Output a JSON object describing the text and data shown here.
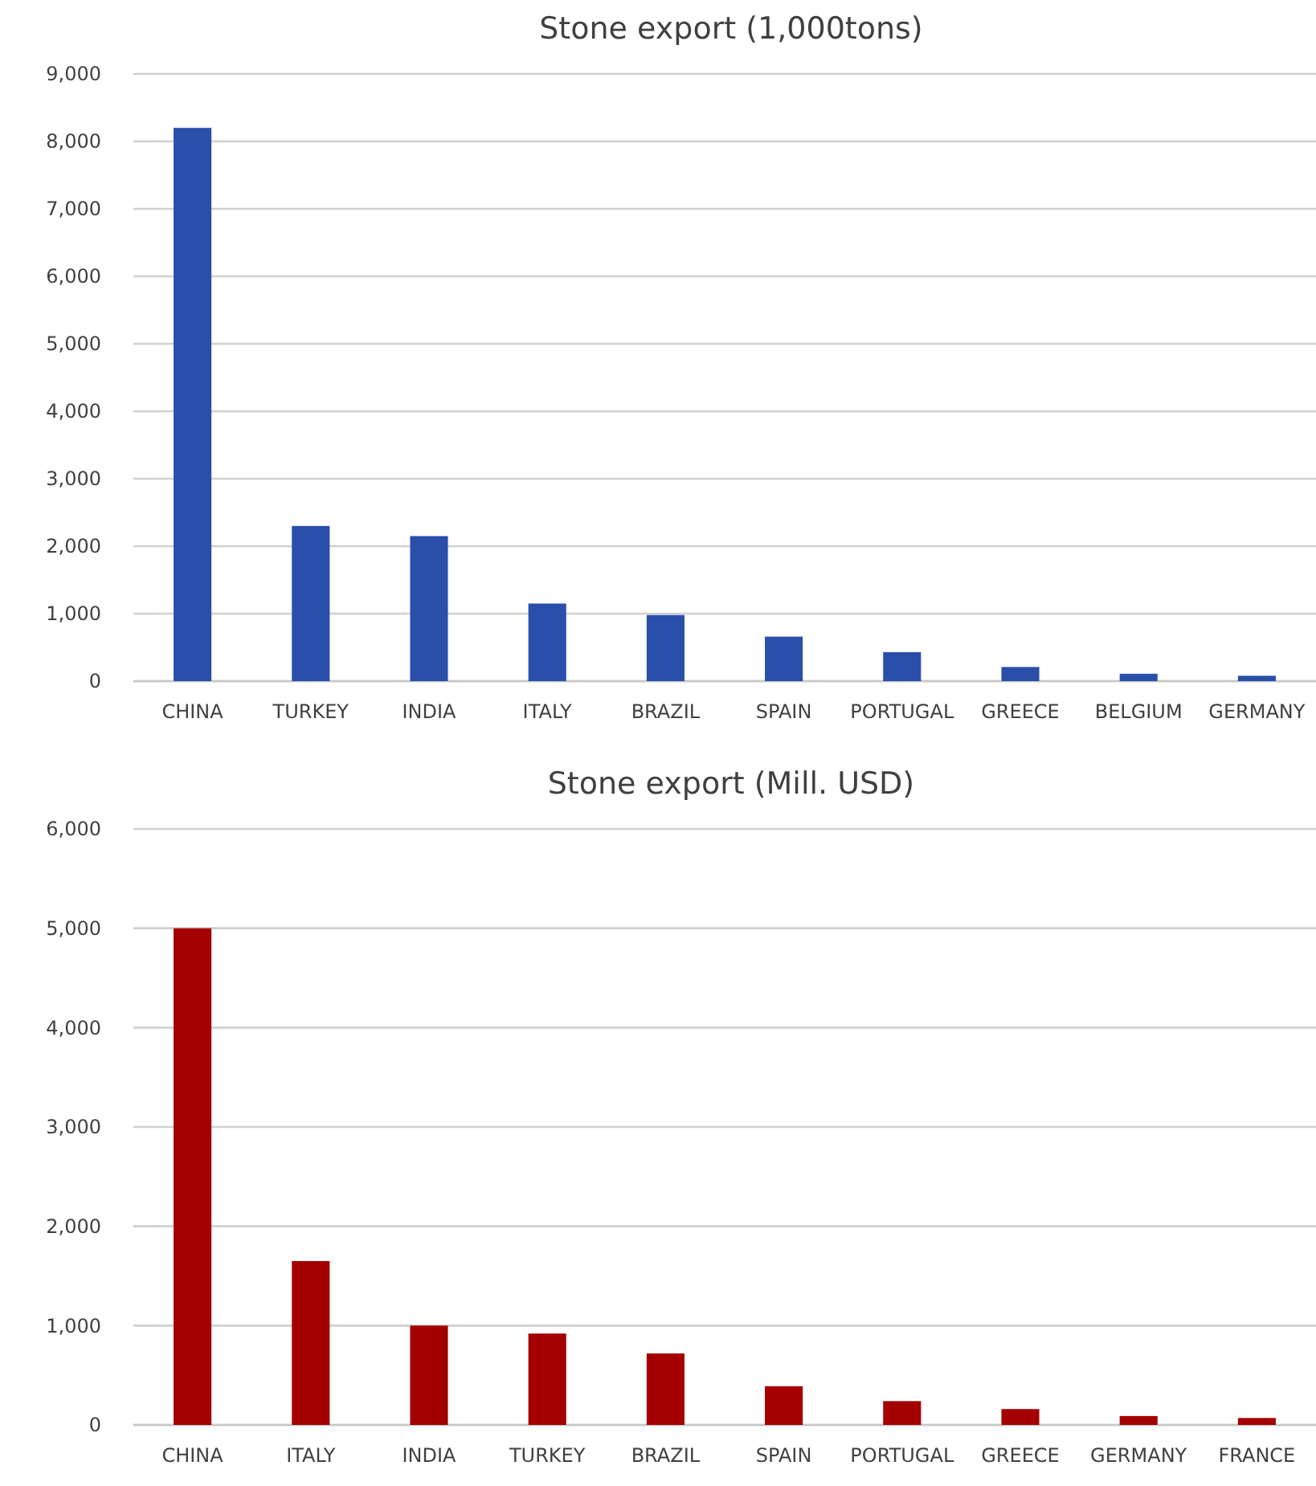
{
  "chart_data": [
    {
      "type": "bar",
      "title": "Stone export (1,000tons)",
      "categories": [
        "CHINA",
        "TURKEY",
        "INDIA",
        "ITALY",
        "BRAZIL",
        "SPAIN",
        "PORTUGAL",
        "GREECE",
        "BELGIUM",
        "GERMANY"
      ],
      "values": [
        8200,
        2300,
        2150,
        1150,
        980,
        660,
        430,
        210,
        110,
        80
      ],
      "color": "#2a4faa",
      "ylim": [
        0,
        9000
      ],
      "yticks": [
        {
          "value": 0,
          "label": "0"
        },
        {
          "value": 1000,
          "label": "1,000"
        },
        {
          "value": 2000,
          "label": "2,000"
        },
        {
          "value": 3000,
          "label": "3,000"
        },
        {
          "value": 4000,
          "label": "4,000"
        },
        {
          "value": 5000,
          "label": "5,000"
        },
        {
          "value": 6000,
          "label": "6,000"
        },
        {
          "value": 7000,
          "label": "7,000"
        },
        {
          "value": 8000,
          "label": "8,000"
        },
        {
          "value": 9000,
          "label": "9,000"
        }
      ],
      "grid": "y"
    },
    {
      "type": "bar",
      "title": "Stone export (Mill. USD)",
      "categories": [
        "CHINA",
        "ITALY",
        "INDIA",
        "TURKEY",
        "BRAZIL",
        "SPAIN",
        "PORTUGAL",
        "GREECE",
        "GERMANY",
        "FRANCE"
      ],
      "values": [
        5000,
        1650,
        1000,
        920,
        720,
        390,
        240,
        160,
        90,
        70
      ],
      "color": "#a50000",
      "ylim": [
        0,
        6000
      ],
      "yticks": [
        {
          "value": 0,
          "label": "0"
        },
        {
          "value": 1000,
          "label": "1,000"
        },
        {
          "value": 2000,
          "label": "2,000"
        },
        {
          "value": 3000,
          "label": "3,000"
        },
        {
          "value": 4000,
          "label": "4,000"
        },
        {
          "value": 5000,
          "label": "5,000"
        },
        {
          "value": 6000,
          "label": "6,000"
        }
      ],
      "grid": "y"
    }
  ]
}
